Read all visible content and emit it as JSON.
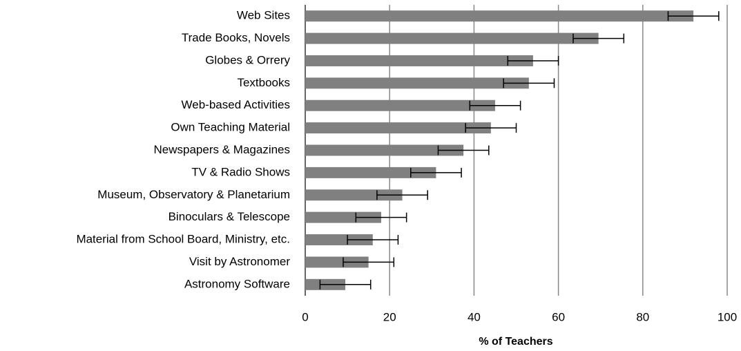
{
  "chart_data": {
    "type": "bar",
    "orientation": "horizontal",
    "x_label": "% of Teachers",
    "categories": [
      "Web Sites",
      "Trade Books, Novels",
      "Globes & Orrery",
      "Textbooks",
      "Web-based Activities",
      "Own Teaching Material",
      "Newspapers & Magazines",
      "TV & Radio Shows",
      "Museum, Observatory & Planetarium",
      "Binoculars & Telescope",
      "Material from School Board, Ministry, etc.",
      "Visit by Astronomer",
      "Astronomy Software"
    ],
    "values": [
      92,
      69.5,
      54,
      53,
      45,
      44,
      37.5,
      31,
      23,
      18,
      16,
      15,
      9.5
    ],
    "errors": [
      6,
      6,
      6,
      6,
      6,
      6,
      6,
      6,
      6,
      6,
      6,
      6,
      6
    ],
    "color": "#808080",
    "xlim": [
      0,
      100
    ],
    "xticks": [
      0,
      20,
      40,
      60,
      80,
      100
    ],
    "grid": true
  }
}
